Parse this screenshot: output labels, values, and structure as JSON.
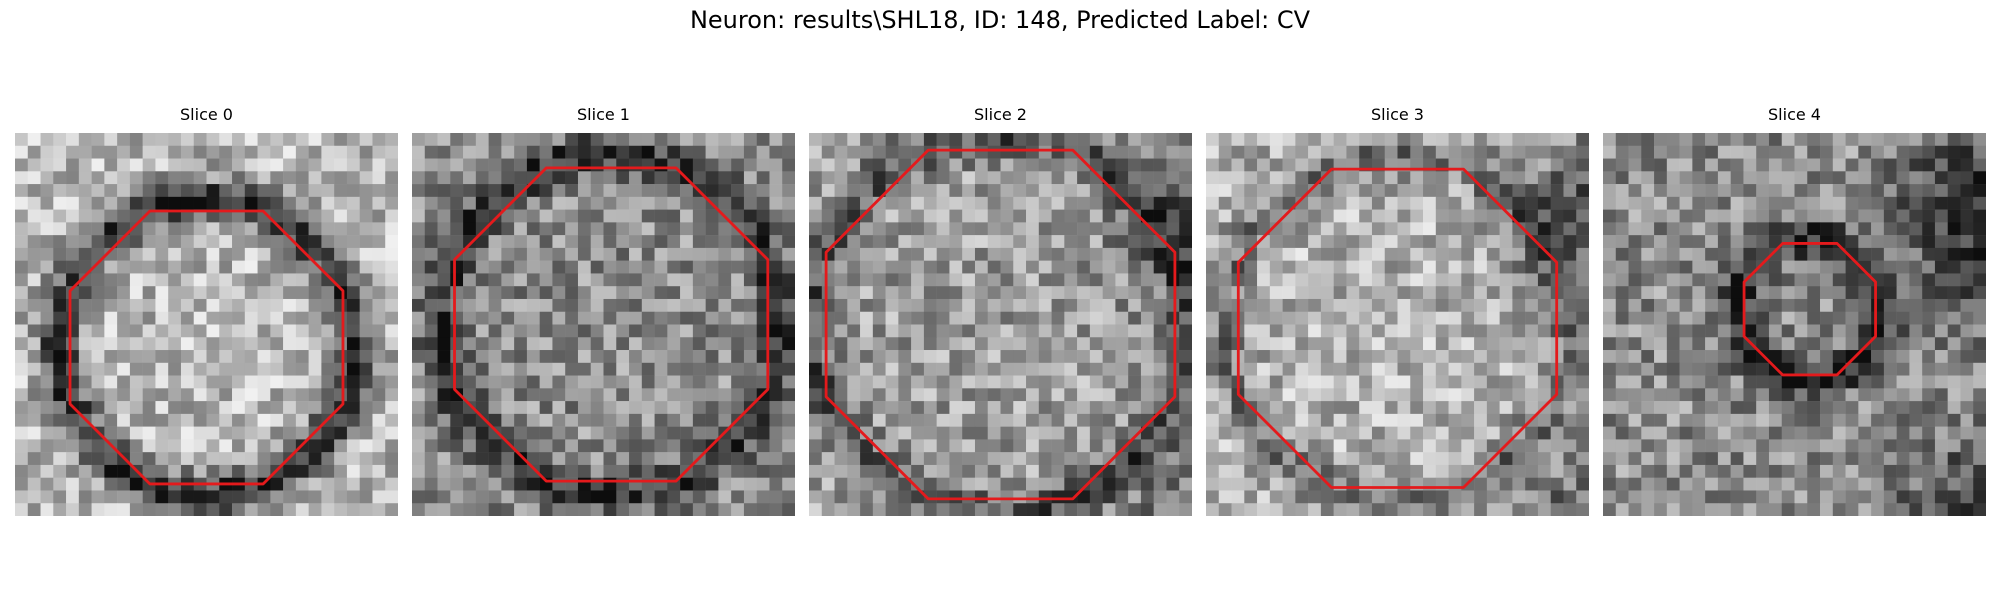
{
  "figure": {
    "title": "Neuron: results\\SHL18, ID: 148, Predicted Label: CV",
    "contour_color": "#e41a1c"
  },
  "panels": [
    {
      "title": "Slice 0"
    },
    {
      "title": "Slice 1"
    },
    {
      "title": "Slice 2"
    },
    {
      "title": "Slice 3"
    },
    {
      "title": "Slice 4"
    }
  ]
}
